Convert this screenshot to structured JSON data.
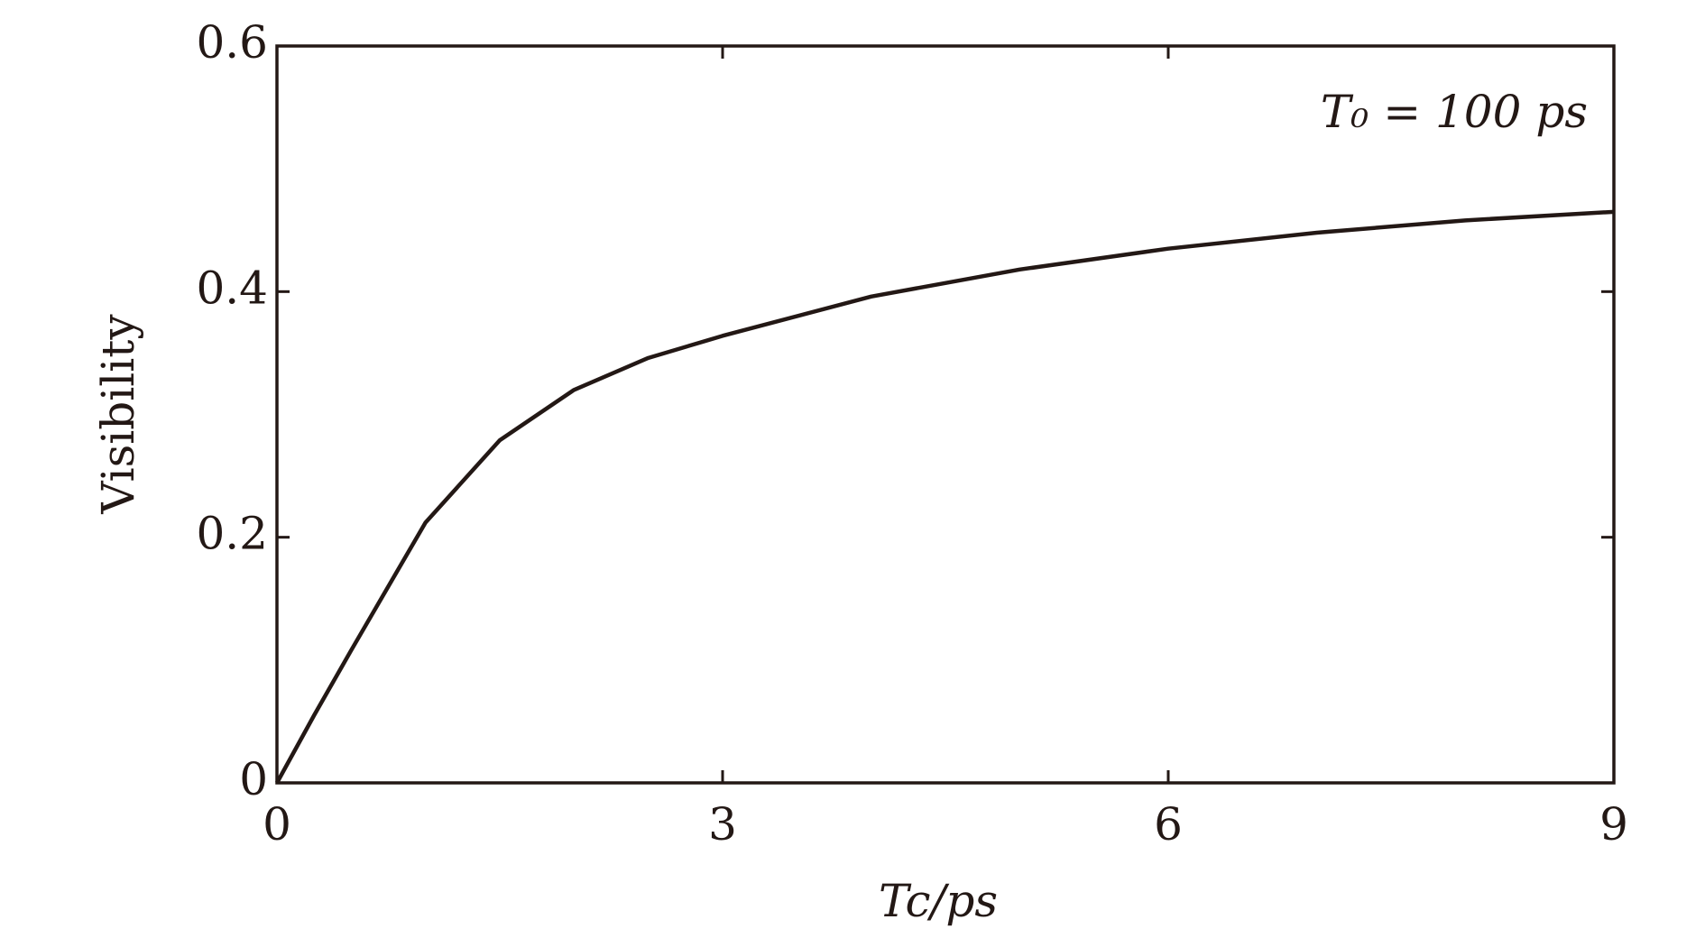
{
  "chart_data": {
    "type": "line",
    "annotation": "T₀ = 100 ps",
    "x_label": "Tc/ps",
    "y_label": "Visibility",
    "x": [
      0,
      0.25,
      0.5,
      1,
      1.5,
      2,
      2.5,
      3,
      4,
      5,
      6,
      7,
      8,
      9
    ],
    "series": [
      {
        "color": "#231815",
        "values": [
          0,
          0.055,
          0.108,
          0.212,
          0.279,
          0.32,
          0.346,
          0.364,
          0.396,
          0.418,
          0.435,
          0.448,
          0.458,
          0.465
        ]
      }
    ],
    "xlim": [
      0,
      9
    ],
    "xticks": [
      0,
      3,
      6,
      9
    ],
    "ylim": [
      0,
      0.6
    ],
    "yticks": [
      0,
      0.2,
      0.4,
      0.6
    ]
  }
}
